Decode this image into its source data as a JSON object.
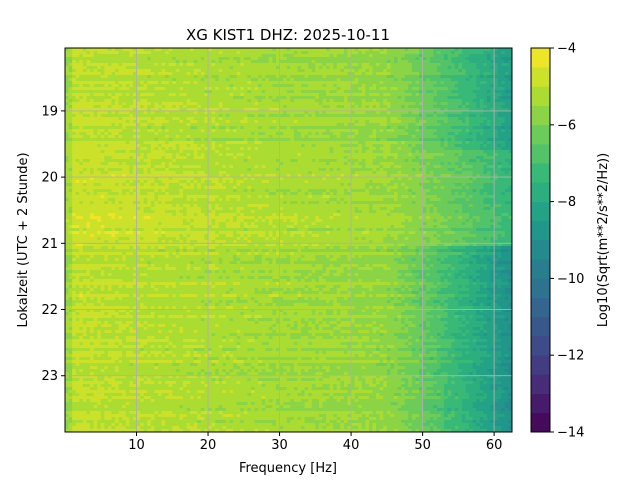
{
  "chart_data": {
    "type": "heatmap",
    "title": "XG KIST1  DHZ: 2025-10-11",
    "xlabel": "Frequency [Hz]",
    "ylabel": "Lokalzeit (UTC + 2 Stunde)",
    "xlim": [
      0,
      62.5
    ],
    "ylim": [
      23.85,
      18.05
    ],
    "y_inverted": true,
    "x_ticks": [
      10,
      20,
      30,
      40,
      50,
      60
    ],
    "y_ticks": [
      19,
      20,
      21,
      22,
      23
    ],
    "grid": true,
    "colormap": "viridis",
    "colorbar": {
      "label": "Log10(Sqrt(m**2/s**2/Hz))",
      "range": [
        -14,
        -4
      ],
      "ticks": [
        -4,
        -6,
        -8,
        -10,
        -12,
        -14
      ],
      "levels": 20
    },
    "bands": [
      {
        "time_range": [
          18.05,
          19.6
        ],
        "level_at_low_freq": -4.9,
        "level_at_high_freq": -8.4
      },
      {
        "time_range": [
          19.6,
          21.05
        ],
        "level_at_low_freq": -4.7,
        "level_at_high_freq": -7.4
      },
      {
        "time_range": [
          21.05,
          23.85
        ],
        "level_at_low_freq": -4.9,
        "level_at_high_freq": -9.0
      }
    ]
  }
}
